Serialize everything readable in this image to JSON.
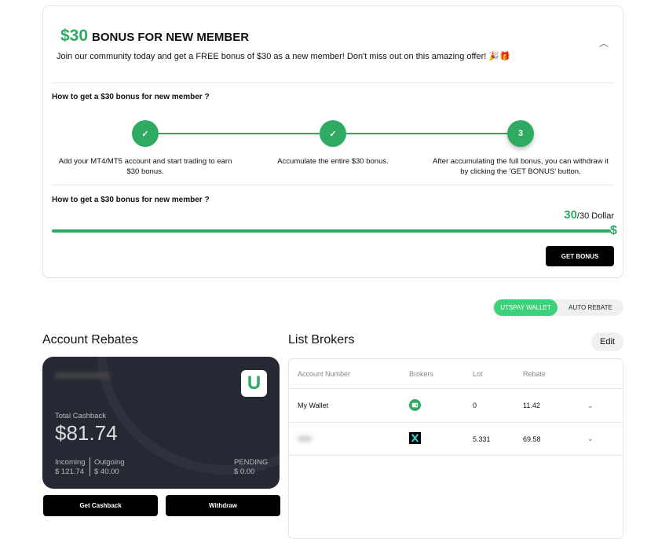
{
  "bonus": {
    "amount": "$30",
    "title": "BONUS FOR NEW MEMBER",
    "description": "Join our community today and get a FREE bonus of $30 as a new member! Don't miss out on this amazing offer! 🎉🎁",
    "how_title": "How to get a $30 bonus for new member ?",
    "steps": [
      {
        "label": "✓",
        "text": "Add your MT4/MT5 account and start trading to earn $30 bonus."
      },
      {
        "label": "✓",
        "text": "Accumulate the entire $30 bonus."
      },
      {
        "label": "3",
        "text": "After accumulating the full bonus, you can withdraw it by clicking the 'GET BONUS' button."
      }
    ],
    "progress_title": "How to get a $30 bonus for new member ?",
    "progress_value": "30",
    "progress_total": "/30 Dollar",
    "progress_fraction": 1.0,
    "progress_icon": "$",
    "get_bonus": "GET BONUS"
  },
  "toggle": {
    "active": "UTSPAY WALLET",
    "inactive": "AUTO REBATE"
  },
  "rebates": {
    "title": "Account Rebates",
    "total_label": "Total Cashback",
    "total": "$81.74",
    "incoming_label": "Incoming",
    "incoming": "$ 121.74",
    "outgoing_label": "Outgoing",
    "outgoing": "$ 40.00",
    "pending_label": "PENDING",
    "pending": "$ 0.00",
    "logo": "U",
    "get_cashback": "Get Cashback",
    "withdraw": "Withdraw"
  },
  "brokers": {
    "title": "List Brokers",
    "edit": "Edit",
    "columns": [
      "Account Number",
      "Brokers",
      "Lot",
      "Rebate"
    ],
    "rows": [
      {
        "account": "My Wallet",
        "broker_icon": "wallet-icon",
        "lot": "0",
        "rebate": "11.42"
      },
      {
        "account": "",
        "broker_icon": "x-broker-icon",
        "lot": "5.331",
        "rebate": "69.58"
      }
    ]
  },
  "colors": {
    "accent": "#2eaa63",
    "toggle": "#3ed17b",
    "card": "#262833"
  }
}
